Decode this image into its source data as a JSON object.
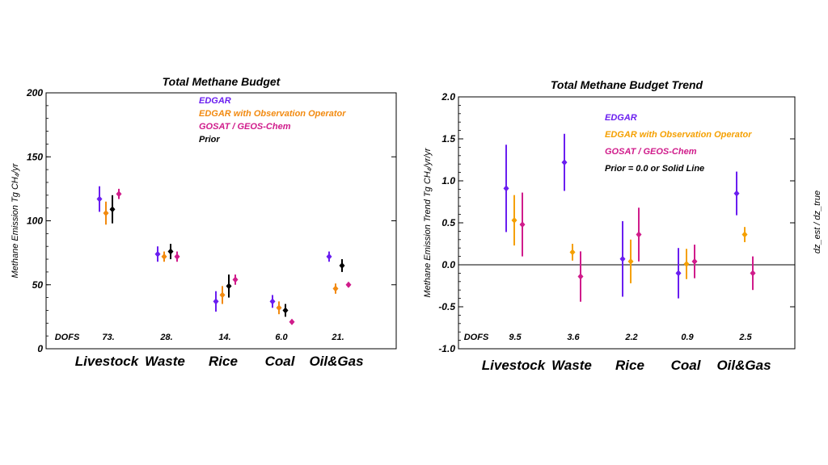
{
  "chart_data": [
    {
      "type": "scatter",
      "title": "Total Methane Budget",
      "ylabel": "Methane Emission Tg CH₄/yr",
      "y2label": "",
      "ylim": [
        0,
        200
      ],
      "yticks": [
        0,
        50,
        100,
        150,
        200
      ],
      "ytick_labels": [
        "0",
        "50",
        "100",
        "150",
        "200"
      ],
      "categories": [
        "Livestock",
        "Waste",
        "Rice",
        "Coal",
        "Oil&Gas"
      ],
      "dofs_label": "DOFS",
      "dofs": [
        "73.",
        "28.",
        "14.",
        "6.0",
        "21."
      ],
      "baseline": null,
      "series": [
        {
          "name": "EDGAR",
          "color": "#6a1ef0",
          "values": [
            117,
            74,
            37,
            37,
            72
          ],
          "err": [
            10,
            6,
            8,
            5,
            4
          ]
        },
        {
          "name": "EDGAR with Observation Operator",
          "color": "#f28a10",
          "values": [
            106,
            72,
            42,
            32,
            47
          ],
          "err": [
            9,
            4,
            7,
            5,
            4
          ]
        },
        {
          "name": "Prior",
          "color": "#000000",
          "values": [
            109,
            76,
            49,
            30,
            65
          ],
          "err": [
            11,
            6,
            9,
            5,
            5
          ]
        },
        {
          "name": "GOSAT / GEOS-Chem",
          "color": "#d01c8b",
          "values": [
            121,
            72,
            54,
            21,
            50
          ],
          "err": [
            4,
            4,
            4,
            2,
            2
          ]
        }
      ],
      "legend_order": [
        "EDGAR",
        "EDGAR with Observation Operator",
        "GOSAT / GEOS-Chem",
        "Prior"
      ]
    },
    {
      "type": "scatter",
      "title": "Total Methane Budget Trend",
      "ylabel": "Methane Emission Trend Tg CH₄/yr/yr",
      "y2label": "dz_est / dz_true",
      "ylim": [
        -1.0,
        2.0
      ],
      "yticks": [
        -1.0,
        -0.5,
        0.0,
        0.5,
        1.0,
        1.5,
        2.0
      ],
      "ytick_labels": [
        "-1.0",
        "-0.5",
        "0.0",
        "0.5",
        "1.0",
        "1.5",
        "2.0"
      ],
      "categories": [
        "Livestock",
        "Waste",
        "Rice",
        "Coal",
        "Oil&Gas"
      ],
      "dofs_label": "DOFS",
      "dofs": [
        "9.5",
        "3.6",
        "2.2",
        "0.9",
        "2.5"
      ],
      "baseline": 0.0,
      "series": [
        {
          "name": "EDGAR",
          "color": "#6a1ef0",
          "values": [
            0.91,
            1.22,
            0.07,
            -0.1,
            0.85
          ],
          "err": [
            0.52,
            0.34,
            0.45,
            0.3,
            0.26
          ]
        },
        {
          "name": "EDGAR with Observation Operator",
          "color": "#f5a000",
          "values": [
            0.53,
            0.15,
            0.04,
            0.01,
            0.36
          ],
          "err": [
            0.3,
            0.1,
            0.26,
            0.18,
            0.09
          ]
        },
        {
          "name": "GOSAT / GEOS-Chem",
          "color": "#d01c8b",
          "values": [
            0.48,
            -0.14,
            0.36,
            0.04,
            -0.1
          ],
          "err": [
            0.38,
            0.3,
            0.32,
            0.2,
            0.2
          ]
        }
      ],
      "legend_order": [
        "EDGAR",
        "EDGAR with Observation Operator",
        "GOSAT / GEOS-Chem",
        "Prior = 0.0 or Solid Line"
      ],
      "legend_extra": "Prior = 0.0 or Solid Line"
    }
  ]
}
